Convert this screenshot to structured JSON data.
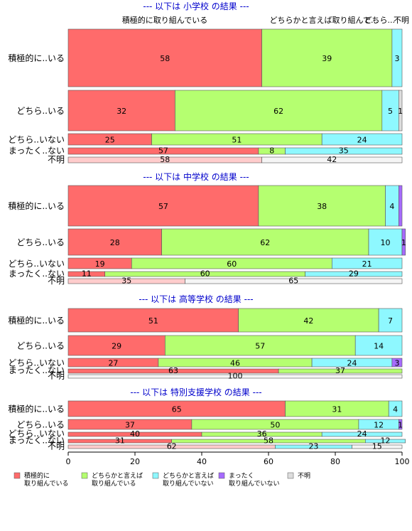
{
  "chart_data": {
    "type": "bar",
    "orientation": "horizontal",
    "stacked": "percent",
    "xlim": [
      0,
      100
    ],
    "xticks": [
      "0",
      "20",
      "40",
      "60",
      "80",
      "100"
    ],
    "legend_position": "bottom",
    "column_headers": [
      "積極的に取り組んでいる",
      "どちらかと言えば取り組んで...",
      "どちら...",
      "不明"
    ],
    "legend": [
      {
        "label_lines": [
          "積極的に",
          "取り組んでいる"
        ],
        "color": "#FF6B6B"
      },
      {
        "label_lines": [
          "どちらかと言えば",
          "取り組んでいる"
        ],
        "color": "#B5FF70"
      },
      {
        "label_lines": [
          "どちらかと言えば",
          "取り組んでいない"
        ],
        "color": "#8EF8FF"
      },
      {
        "label_lines": [
          "まったく",
          "取り組んでいない"
        ],
        "color": "#A66BFF"
      },
      {
        "label_lines": [
          "不明"
        ],
        "color": "#DDDDDD"
      }
    ],
    "panels": [
      {
        "title": "--- 以下は 小学校 の結果 ---",
        "rows": [
          {
            "label": "積極的に..いる",
            "values": [
              58,
              39,
              3,
              0,
              0
            ],
            "labels": [
              "58",
              "39",
              "3",
              "",
              ""
            ]
          },
          {
            "label": "どちら..いる",
            "values": [
              32,
              62,
              5,
              0,
              1
            ],
            "labels": [
              "32",
              "62",
              "5",
              "",
              "1"
            ]
          },
          {
            "label": "どちら..いない",
            "values": [
              25,
              51,
              24,
              0,
              0
            ],
            "labels": [
              "25",
              "51",
              "24",
              "",
              ""
            ]
          },
          {
            "label": "まったく..ない",
            "values": [
              57,
              8,
              35,
              0,
              0
            ],
            "labels": [
              "57",
              "8",
              "35",
              "",
              ""
            ]
          },
          {
            "label": "不明",
            "values": [
              58,
              0,
              0,
              0,
              42
            ],
            "labels": [
              "58",
              "",
              "",
              "",
              "42"
            ]
          }
        ]
      },
      {
        "title": "--- 以下は 中学校 の結果 ---",
        "rows": [
          {
            "label": "積極的に..いる",
            "values": [
              57,
              38,
              4,
              1,
              0
            ],
            "labels": [
              "57",
              "38",
              "4",
              "",
              ""
            ]
          },
          {
            "label": "どちら..いる",
            "values": [
              28,
              62,
              10,
              1,
              0
            ],
            "labels": [
              "28",
              "62",
              "10",
              "1",
              ""
            ]
          },
          {
            "label": "どちら..いない",
            "values": [
              19,
              60,
              21,
              0,
              0
            ],
            "labels": [
              "19",
              "60",
              "21",
              "",
              ""
            ]
          },
          {
            "label": "まったく..ない",
            "values": [
              11,
              60,
              29,
              0,
              0
            ],
            "labels": [
              "11",
              "60",
              "29",
              "",
              ""
            ]
          },
          {
            "label": "不明",
            "values": [
              35,
              0,
              0,
              0,
              65
            ],
            "labels": [
              "35",
              "",
              "",
              "",
              "65"
            ]
          }
        ]
      },
      {
        "title": "--- 以下は 高等学校 の結果 ---",
        "rows": [
          {
            "label": "積極的に..いる",
            "values": [
              51,
              42,
              7,
              0,
              0
            ],
            "labels": [
              "51",
              "42",
              "7",
              "",
              ""
            ]
          },
          {
            "label": "どちら..いる",
            "values": [
              29,
              57,
              14,
              0,
              0
            ],
            "labels": [
              "29",
              "57",
              "14",
              "",
              ""
            ]
          },
          {
            "label": "どちら..いない",
            "values": [
              27,
              46,
              24,
              3,
              0
            ],
            "labels": [
              "27",
              "46",
              "24",
              "3",
              ""
            ]
          },
          {
            "label": "まったく..ない",
            "values": [
              63,
              37,
              0,
              0,
              0
            ],
            "labels": [
              "63",
              "37",
              "",
              "",
              ""
            ]
          },
          {
            "label": "不明",
            "values": [
              0,
              0,
              0,
              0,
              100
            ],
            "labels": [
              "",
              "",
              "",
              "",
              "100"
            ]
          }
        ]
      },
      {
        "title": "--- 以下は 特別支援学校 の結果 ---",
        "rows": [
          {
            "label": "積極的に..いる",
            "values": [
              65,
              31,
              4,
              0,
              0
            ],
            "labels": [
              "65",
              "31",
              "4",
              "",
              ""
            ]
          },
          {
            "label": "どちら..いる",
            "values": [
              37,
              50,
              12,
              1,
              0
            ],
            "labels": [
              "37",
              "50",
              "12",
              "1",
              ""
            ]
          },
          {
            "label": "どちら..いない",
            "values": [
              40,
              36,
              24,
              0,
              0
            ],
            "labels": [
              "40",
              "36",
              "24",
              "",
              ""
            ]
          },
          {
            "label": "まったく..ない",
            "values": [
              31,
              58,
              12,
              0,
              0
            ],
            "labels": [
              "31",
              "58",
              "12",
              "",
              ""
            ]
          },
          {
            "label": "不明",
            "values": [
              62,
              0,
              23,
              0,
              15
            ],
            "labels": [
              "62",
              "",
              "23",
              "",
              "15"
            ]
          }
        ]
      }
    ]
  }
}
